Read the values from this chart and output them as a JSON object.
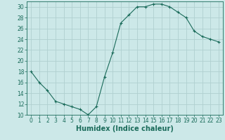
{
  "x": [
    0,
    1,
    2,
    3,
    4,
    5,
    6,
    7,
    8,
    9,
    10,
    11,
    12,
    13,
    14,
    15,
    16,
    17,
    18,
    19,
    20,
    21,
    22,
    23
  ],
  "y": [
    18,
    16,
    14.5,
    12.5,
    12,
    11.5,
    11,
    10,
    11.5,
    17,
    21.5,
    27,
    28.5,
    30,
    30,
    30.5,
    30.5,
    30,
    29,
    28,
    25.5,
    24.5,
    24,
    23.5
  ],
  "line_color": "#1a6b5a",
  "marker": "+",
  "bg_color": "#cce8e8",
  "grid_color": "#b0d0d0",
  "xlabel": "Humidex (Indice chaleur)",
  "xlim": [
    -0.5,
    23.5
  ],
  "ylim": [
    10,
    31
  ],
  "yticks": [
    10,
    12,
    14,
    16,
    18,
    20,
    22,
    24,
    26,
    28,
    30
  ],
  "xticks": [
    0,
    1,
    2,
    3,
    4,
    5,
    6,
    7,
    8,
    9,
    10,
    11,
    12,
    13,
    14,
    15,
    16,
    17,
    18,
    19,
    20,
    21,
    22,
    23
  ],
  "tick_color": "#1a6b5a",
  "label_color": "#1a6b5a",
  "xlabel_fontsize": 7.0,
  "tick_fontsize": 5.5
}
